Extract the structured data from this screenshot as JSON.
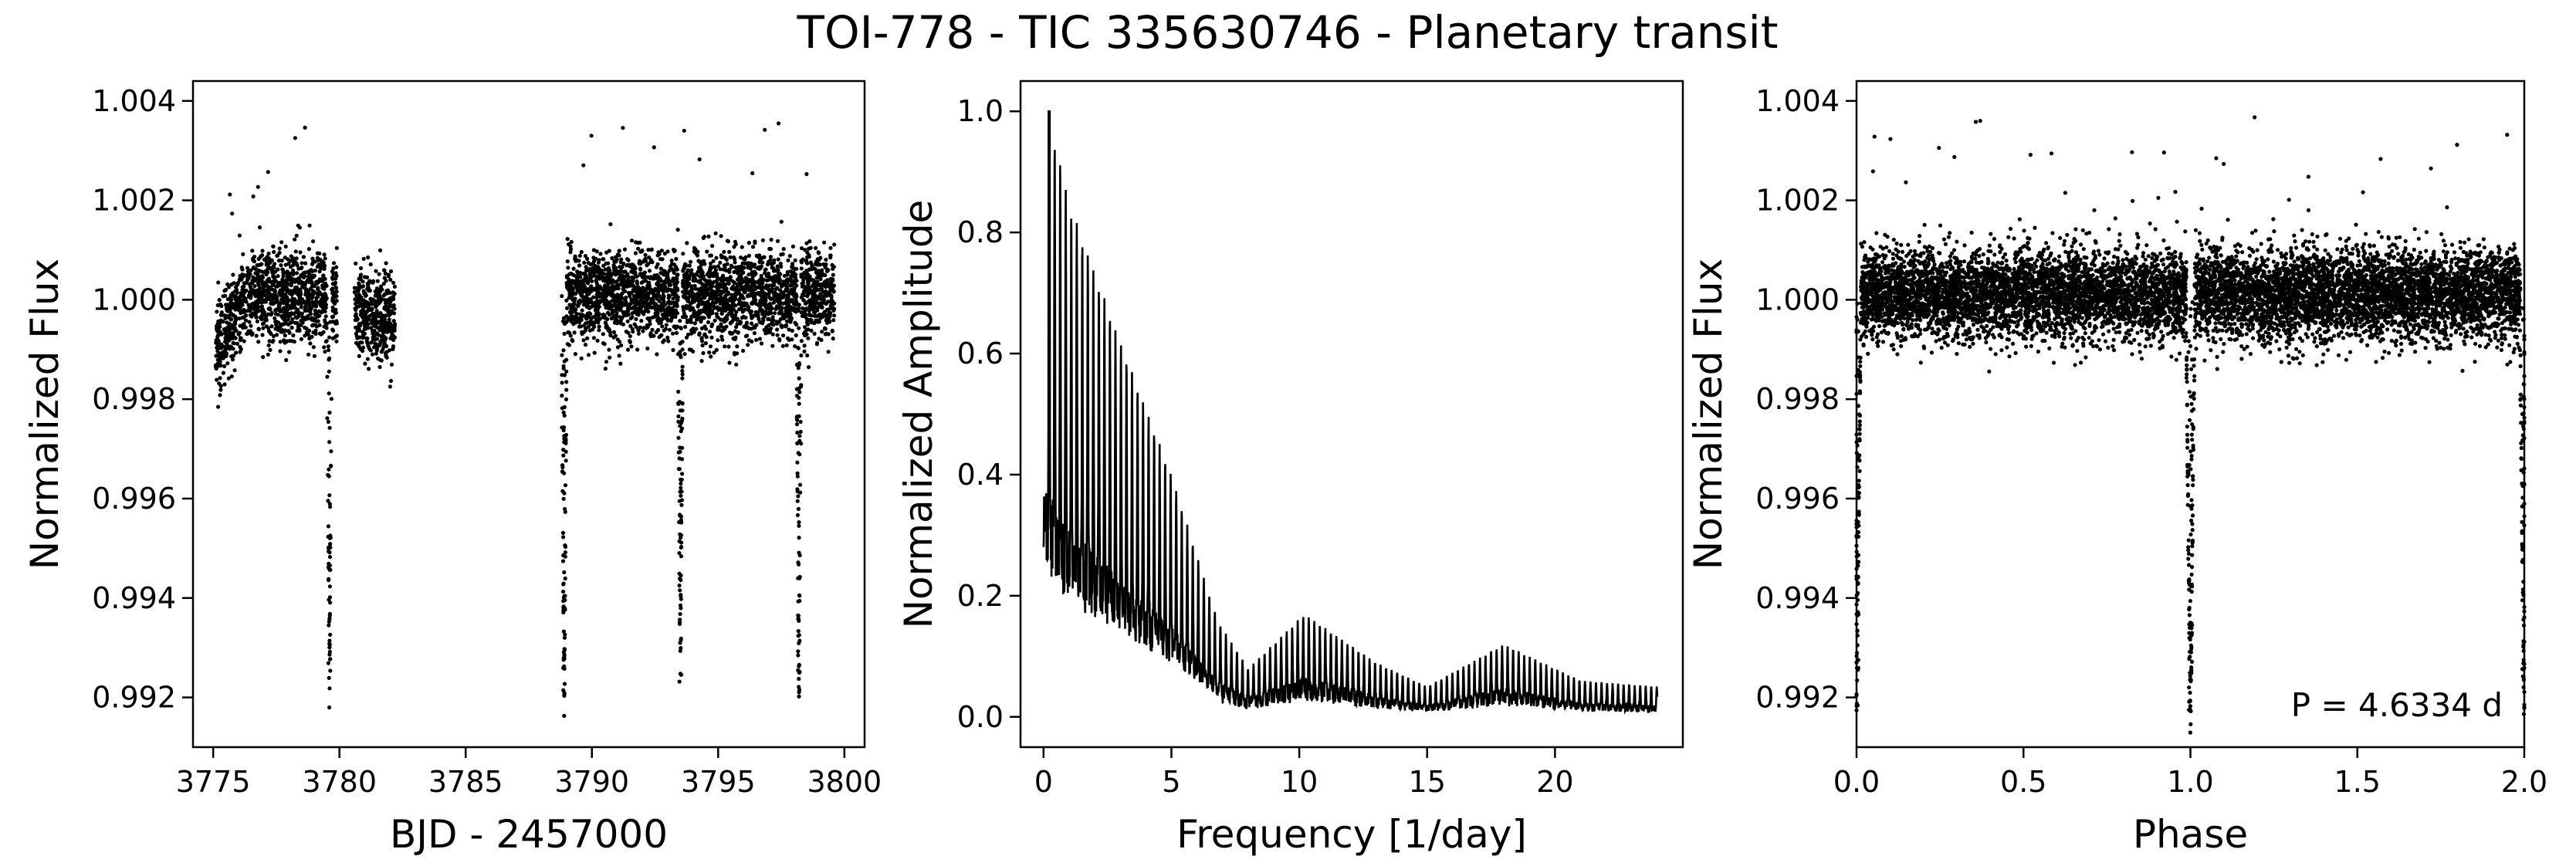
{
  "figure": {
    "title": "TOI-778 - TIC 335630746 - Planetary transit"
  },
  "chart_data": [
    {
      "type": "scatter",
      "xlabel": "BJD - 2457000",
      "ylabel": "Normalized Flux",
      "xlim": [
        3774.2,
        3800.8
      ],
      "ylim": [
        0.991,
        1.0044
      ],
      "xticks": [
        3775,
        3780,
        3785,
        3790,
        3795,
        3800
      ],
      "yticks": [
        0.992,
        0.994,
        0.996,
        0.998,
        1.0,
        1.002,
        1.004
      ],
      "xtick_labels": [
        "3775",
        "3780",
        "3785",
        "3790",
        "3795",
        "3800"
      ],
      "ytick_labels": [
        "0.992",
        "0.994",
        "0.996",
        "0.998",
        "1.000",
        "1.002",
        "1.004"
      ],
      "color": "#000000",
      "segments": [
        {
          "x": [
            3775.1,
            3779.9
          ],
          "baseline": 1.0001
        },
        {
          "x": [
            3780.6,
            3782.2
          ],
          "baseline": 0.9997
        },
        {
          "x": [
            3788.8,
            3799.6
          ],
          "baseline": 1.0001
        }
      ],
      "transits": [
        {
          "x": 3779.6,
          "min_flux": 0.9923
        },
        {
          "x": 3788.9,
          "min_flux": 0.9917
        },
        {
          "x": 3793.5,
          "min_flux": 0.9922
        },
        {
          "x": 3798.2,
          "min_flux": 0.9923
        }
      ]
    },
    {
      "type": "line",
      "xlabel": "Frequency [1/day]",
      "ylabel": "Normalized Amplitude",
      "xlim": [
        -0.9,
        25.0
      ],
      "ylim": [
        -0.05,
        1.05
      ],
      "xticks": [
        0,
        5,
        10,
        15,
        20
      ],
      "yticks": [
        0.0,
        0.2,
        0.4,
        0.6,
        0.8,
        1.0
      ],
      "xtick_labels": [
        "0",
        "5",
        "10",
        "15",
        "20"
      ],
      "ytick_labels": [
        "0.0",
        "0.2",
        "0.4",
        "0.6",
        "0.8",
        "1.0"
      ],
      "color": "#000000",
      "x_range": [
        0.0,
        24.0
      ],
      "peak": {
        "x": 0.22,
        "y": 1.0
      },
      "harmonic_spacing": 0.216,
      "envelope": [
        {
          "x": 0.2,
          "y": 1.0
        },
        {
          "x": 1.0,
          "y": 0.85
        },
        {
          "x": 3.0,
          "y": 0.62
        },
        {
          "x": 5.0,
          "y": 0.4
        },
        {
          "x": 6.8,
          "y": 0.16
        },
        {
          "x": 8.0,
          "y": 0.08
        },
        {
          "x": 10.2,
          "y": 0.17
        },
        {
          "x": 13.0,
          "y": 0.09
        },
        {
          "x": 15.0,
          "y": 0.05
        },
        {
          "x": 18.0,
          "y": 0.12
        },
        {
          "x": 21.0,
          "y": 0.06
        },
        {
          "x": 24.0,
          "y": 0.05
        }
      ]
    },
    {
      "type": "scatter",
      "xlabel": "Phase",
      "ylabel": "Normalized Flux",
      "xlim": [
        0.0,
        2.0
      ],
      "ylim": [
        0.991,
        1.0044
      ],
      "xticks": [
        0.0,
        0.5,
        1.0,
        1.5,
        2.0
      ],
      "yticks": [
        0.992,
        0.994,
        0.996,
        0.998,
        1.0,
        1.002,
        1.004
      ],
      "xtick_labels": [
        "0.0",
        "0.5",
        "1.0",
        "1.5",
        "2.0"
      ],
      "ytick_labels": [
        "0.992",
        "0.994",
        "0.996",
        "0.998",
        "1.000",
        "1.002",
        "1.004"
      ],
      "color": "#000000",
      "period_days": 4.6334,
      "baseline": 1.0001,
      "transit_phases": [
        0.0,
        1.0,
        2.0
      ],
      "transit_min_flux": 0.9917,
      "annotation": "P = 4.6334 d"
    }
  ]
}
